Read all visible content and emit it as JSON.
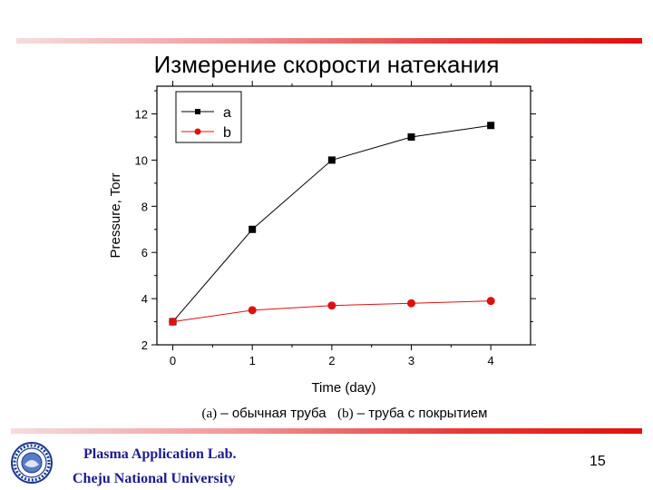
{
  "slide": {
    "title": "Измерение скорости натекания",
    "caption_a_marker": "(a)",
    "caption_a_text": " – обычная труба",
    "caption_b_marker": "(b)",
    "caption_b_text": " – труба с покрытием",
    "lab_name": "Plasma Application Lab.",
    "university": "Cheju National University",
    "page_number": "15",
    "accent_color": "#e01010"
  },
  "chart_data": {
    "type": "line",
    "title": "",
    "xlabel": "Time (day)",
    "ylabel": "Pressure, Torr",
    "xlim": [
      -0.2,
      4.5
    ],
    "ylim": [
      2,
      13.2
    ],
    "xticks": [
      0,
      1,
      2,
      3,
      4
    ],
    "yticks": [
      2,
      4,
      6,
      8,
      10,
      12
    ],
    "grid": false,
    "legend_position": "top-left",
    "x": [
      0,
      1,
      2,
      3,
      4
    ],
    "series": [
      {
        "name": "a",
        "values": [
          3.0,
          7.0,
          10.0,
          11.0,
          11.5
        ],
        "color": "#000000",
        "marker": "square"
      },
      {
        "name": "b",
        "values": [
          3.0,
          3.5,
          3.7,
          3.8,
          3.9
        ],
        "color": "#e01010",
        "marker": "circle"
      }
    ]
  }
}
